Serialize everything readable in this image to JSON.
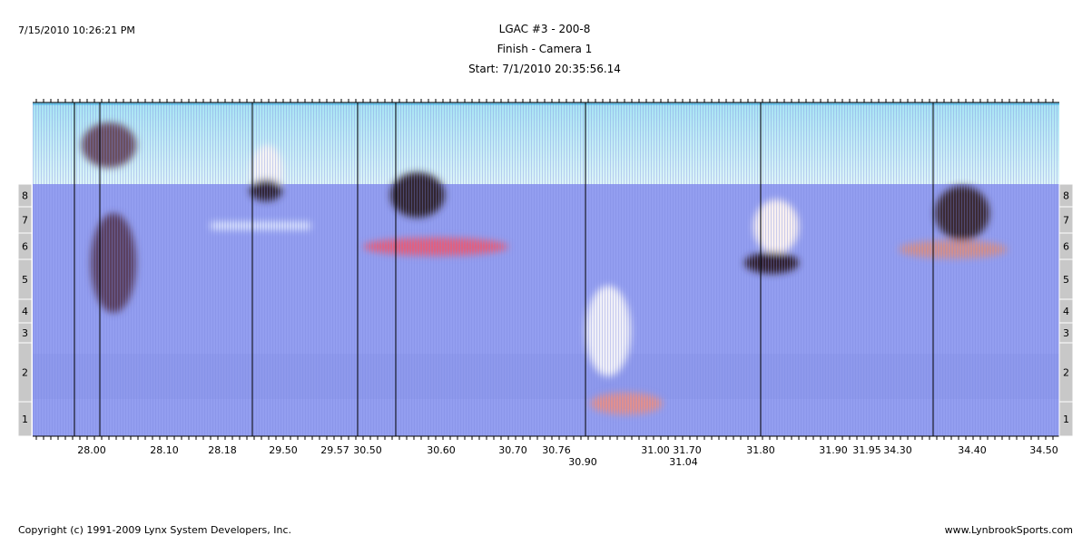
{
  "header": {
    "timestamp": "7/15/2010 10:26:21 PM",
    "title": "LGAC #3 - 200-8",
    "camera": "Finish - Camera 1",
    "start": "Start: 7/1/2010 20:35:56.14"
  },
  "lanes": [
    "8",
    "7",
    "6",
    "5",
    "4",
    "3",
    "2",
    "1"
  ],
  "times": [
    "28.00",
    "28.10",
    "28.18",
    "29.50",
    "29.57",
    "30.50",
    "30.60",
    "30.70",
    "30.76",
    "30.90",
    "31.00",
    "31.70",
    "31.04",
    "31.80",
    "31.90",
    "31.95",
    "34.30",
    "34.40",
    "34.50"
  ],
  "footer": {
    "copyright": "Copyright (c) 1991-2009 Lynx System Developers, Inc.",
    "site": "www.LynbrookSports.com"
  }
}
